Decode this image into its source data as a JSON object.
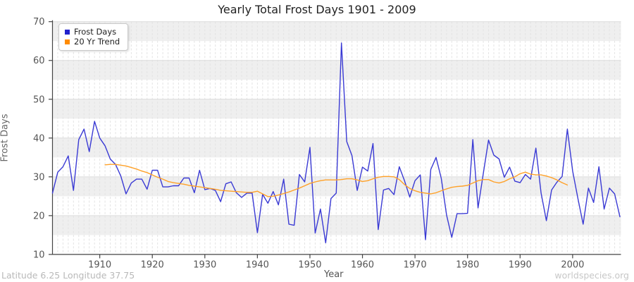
{
  "title": "Yearly Total Frost Days 1901 - 2009",
  "footer": {
    "left": "Latitude 6.25 Longitude 37.75",
    "right": "worldspecies.org"
  },
  "legend": {
    "position": "top-left",
    "items": [
      {
        "label": "Frost Days",
        "color": "#2222cc"
      },
      {
        "label": "20 Yr Trend",
        "color": "#ff8c00"
      }
    ]
  },
  "palette": {
    "frost_line": "#3a3ad4",
    "trend_line": "#ffa128",
    "band_gray": "#efefef",
    "grid_h": "#dcdcdc",
    "grid_v_dashed": "#e3e3e3",
    "axis": "#444444",
    "tick_text": "#555555"
  },
  "chart_data": {
    "type": "line",
    "title": "Yearly Total Frost Days 1901 - 2009",
    "xlabel": "Year",
    "ylabel": "Frost Days",
    "xlim": [
      1901,
      2009
    ],
    "ylim": [
      10,
      70
    ],
    "x_ticks": [
      1910,
      1920,
      1930,
      1940,
      1950,
      1960,
      1970,
      1980,
      1990,
      2000
    ],
    "y_ticks": [
      10,
      20,
      30,
      40,
      50,
      60,
      70
    ],
    "grid": "horizontal gridlines each 10; dashed vertical gridline each year; alternating 5-unit gray bands",
    "legend_position": "top-left",
    "series": [
      {
        "name": "Frost Days",
        "color": "#3a3ad4",
        "x_start": 1901,
        "x_step": 1,
        "values": [
          25.8,
          31.2,
          32.6,
          35.4,
          26.5,
          39.6,
          42.3,
          36.5,
          44.3,
          40.0,
          38.0,
          34.6,
          33.2,
          30.2,
          25.6,
          28.4,
          29.4,
          29.4,
          26.8,
          31.7,
          31.7,
          27.4,
          27.4,
          27.7,
          27.7,
          29.7,
          29.7,
          25.9,
          31.7,
          26.7,
          27.0,
          26.5,
          23.6,
          28.2,
          28.7,
          25.9,
          24.7,
          25.8,
          25.8,
          15.6,
          25.5,
          23.2,
          26.2,
          22.8,
          29.4,
          17.8,
          17.5,
          30.6,
          28.7,
          37.6,
          15.5,
          21.7,
          13.0,
          24.4,
          25.8,
          64.5,
          39.1,
          35.5,
          26.5,
          32.5,
          31.5,
          38.6,
          16.4,
          26.6,
          27.0,
          25.4,
          32.6,
          29.0,
          24.8,
          29.0,
          30.5,
          13.8,
          31.9,
          35.0,
          29.6,
          20.2,
          14.4,
          20.5,
          20.5,
          20.6,
          39.6,
          22.0,
          30.9,
          39.5,
          35.6,
          34.6,
          29.9,
          32.5,
          28.9,
          28.5,
          30.6,
          29.4,
          37.4,
          25.8,
          18.7,
          26.6,
          28.6,
          30.1,
          42.3,
          31.5,
          24.5,
          17.8,
          27.1,
          23.4,
          32.6,
          21.7,
          27.1,
          25.6,
          19.7
        ]
      },
      {
        "name": "20 Yr Trend",
        "color": "#ffa128",
        "x_start": 1911,
        "x_step": 1,
        "values": [
          33.1,
          33.2,
          33.2,
          33.0,
          32.8,
          32.4,
          32.0,
          31.5,
          31.1,
          30.5,
          29.9,
          29.4,
          28.8,
          28.5,
          28.3,
          28.1,
          27.8,
          27.6,
          27.4,
          27.2,
          27.0,
          26.8,
          26.5,
          26.4,
          26.3,
          26.2,
          26.1,
          26.0,
          26.0,
          26.3,
          25.6,
          24.9,
          25.0,
          25.3,
          25.7,
          26.1,
          26.6,
          27.1,
          27.7,
          28.3,
          28.7,
          29.0,
          29.2,
          29.2,
          29.2,
          29.3,
          29.5,
          29.5,
          29.2,
          28.8,
          29.0,
          29.5,
          29.9,
          30.1,
          30.1,
          30.0,
          29.3,
          28.0,
          27.0,
          26.4,
          26.0,
          25.8,
          25.6,
          25.9,
          26.4,
          26.9,
          27.3,
          27.5,
          27.6,
          27.8,
          28.4,
          29.0,
          29.3,
          29.3,
          28.7,
          28.4,
          28.8,
          29.5,
          30.0,
          30.8,
          31.2,
          30.7,
          30.5,
          30.5,
          30.2,
          29.8,
          29.2,
          28.5,
          27.9
        ]
      }
    ]
  }
}
